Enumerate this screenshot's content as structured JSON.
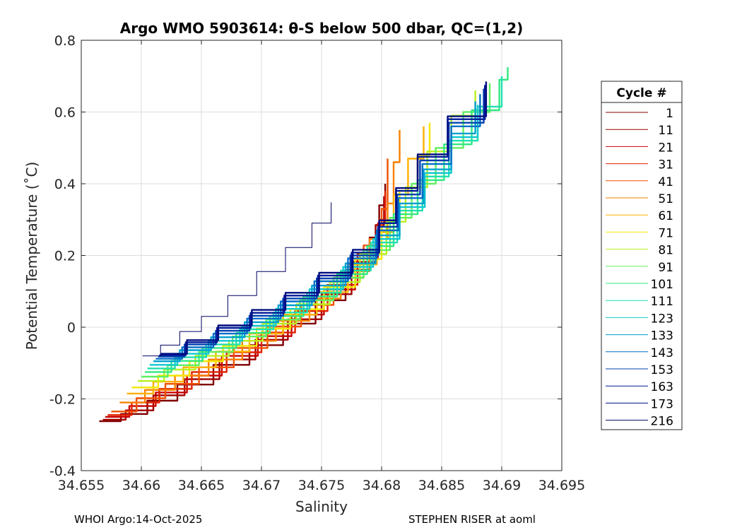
{
  "chart_data": {
    "type": "line",
    "title": "Argo WMO 5903614: θ-S below 500 dbar,  QC=(1,2)",
    "xlabel": "Salinity",
    "ylabel": "Potential Temperature (˚C)",
    "xlim": [
      34.655,
      34.695
    ],
    "ylim": [
      -0.4,
      0.8
    ],
    "xticks": [
      "34.655",
      "34.66",
      "34.665",
      "34.67",
      "34.675",
      "34.68",
      "34.685",
      "34.69",
      "34.695"
    ],
    "yticks": [
      "-0.4",
      "-0.2",
      "0",
      "0.2",
      "0.4",
      "0.6",
      "0.8"
    ],
    "grid": true,
    "legend": {
      "title": "Cycle #",
      "placement": "right",
      "entries": [
        {
          "label": "1",
          "color": "#800000"
        },
        {
          "label": "11",
          "color": "#a00000"
        },
        {
          "label": "21",
          "color": "#c80000"
        },
        {
          "label": "31",
          "color": "#e02000"
        },
        {
          "label": "41",
          "color": "#f05000"
        },
        {
          "label": "51",
          "color": "#f88000"
        },
        {
          "label": "61",
          "color": "#ffb000"
        },
        {
          "label": "71",
          "color": "#f4e800"
        },
        {
          "label": "81",
          "color": "#b8f020"
        },
        {
          "label": "91",
          "color": "#60f060"
        },
        {
          "label": "101",
          "color": "#30e880"
        },
        {
          "label": "111",
          "color": "#20e0b0"
        },
        {
          "label": "123",
          "color": "#10c8d0"
        },
        {
          "label": "133",
          "color": "#00a0d0"
        },
        {
          "label": "143",
          "color": "#0070c8"
        },
        {
          "label": "153",
          "color": "#0040b0"
        },
        {
          "label": "163",
          "color": "#001898"
        },
        {
          "label": "173",
          "color": "#000c80"
        },
        {
          "label": "216",
          "color": "#000060"
        }
      ]
    },
    "series": [
      {
        "label_ref": "1",
        "x": [
          34.6565,
          34.6583,
          34.6605,
          34.663,
          34.666,
          34.669,
          34.6718,
          34.6745,
          34.677,
          34.679,
          34.6798,
          34.6803
        ],
        "y": [
          -0.262,
          -0.242,
          -0.205,
          -0.16,
          -0.105,
          -0.05,
          0.01,
          0.075,
          0.16,
          0.25,
          0.34,
          0.4
        ]
      },
      {
        "label_ref": "11",
        "x": [
          34.6568,
          34.6587,
          34.661,
          34.6636,
          34.6665,
          34.6695,
          34.6722,
          34.675,
          34.6775,
          34.6795,
          34.6802
        ],
        "y": [
          -0.258,
          -0.232,
          -0.19,
          -0.145,
          -0.09,
          -0.035,
          0.022,
          0.092,
          0.182,
          0.285,
          0.365
        ]
      },
      {
        "label_ref": "21",
        "x": [
          34.657,
          34.659,
          34.6612,
          34.6638,
          34.6667,
          34.6697,
          34.6725,
          34.6752,
          34.6778,
          34.6797,
          34.6803
        ],
        "y": [
          -0.25,
          -0.22,
          -0.182,
          -0.135,
          -0.08,
          -0.025,
          0.035,
          0.105,
          0.19,
          0.29,
          0.37
        ]
      },
      {
        "label_ref": "31",
        "x": [
          34.6572,
          34.6592,
          34.6615,
          34.6642,
          34.6671,
          34.67,
          34.6728,
          34.6755,
          34.678,
          34.6798,
          34.6803
        ],
        "y": [
          -0.245,
          -0.21,
          -0.172,
          -0.125,
          -0.07,
          -0.015,
          0.045,
          0.118,
          0.205,
          0.3,
          0.38
        ]
      },
      {
        "label_ref": "41",
        "x": [
          34.6575,
          34.6596,
          34.662,
          34.6648,
          34.6677,
          34.6705,
          34.6733,
          34.676,
          34.6785,
          34.68,
          34.6805
        ],
        "y": [
          -0.235,
          -0.198,
          -0.158,
          -0.112,
          -0.058,
          0.002,
          0.062,
          0.138,
          0.228,
          0.33,
          0.47
        ]
      },
      {
        "label_ref": "51",
        "x": [
          34.6582,
          34.6603,
          34.6628,
          34.6656,
          34.6684,
          34.6712,
          34.674,
          34.6766,
          34.679,
          34.6805,
          34.681,
          34.6815
        ],
        "y": [
          -0.21,
          -0.175,
          -0.135,
          -0.09,
          -0.038,
          0.018,
          0.08,
          0.156,
          0.246,
          0.345,
          0.46,
          0.55
        ]
      },
      {
        "label_ref": "61",
        "x": [
          34.6588,
          34.661,
          34.6635,
          34.6662,
          34.669,
          34.6718,
          34.6746,
          34.6772,
          34.6796,
          34.681,
          34.6822,
          34.6835
        ],
        "y": [
          -0.185,
          -0.152,
          -0.112,
          -0.068,
          -0.018,
          0.035,
          0.098,
          0.175,
          0.265,
          0.37,
          0.47,
          0.56
        ]
      },
      {
        "label_ref": "71",
        "x": [
          34.6592,
          34.6614,
          34.664,
          34.6668,
          34.6696,
          34.6724,
          34.6752,
          34.6778,
          34.68,
          34.6815,
          34.683,
          34.684
        ],
        "y": [
          -0.168,
          -0.135,
          -0.095,
          -0.052,
          -0.004,
          0.05,
          0.112,
          0.19,
          0.28,
          0.38,
          0.48,
          0.57
        ]
      },
      {
        "label_ref": "81",
        "x": [
          34.6597,
          34.6619,
          34.6645,
          34.6673,
          34.6701,
          34.6729,
          34.6757,
          34.6782,
          34.6804,
          34.682,
          34.6838,
          34.6858,
          34.6878
        ],
        "y": [
          -0.15,
          -0.118,
          -0.08,
          -0.038,
          0.01,
          0.064,
          0.126,
          0.204,
          0.294,
          0.39,
          0.49,
          0.59,
          0.66
        ]
      },
      {
        "label_ref": "91",
        "x": [
          34.66,
          34.6622,
          34.6648,
          34.6676,
          34.6704,
          34.6732,
          34.676,
          34.6785,
          34.6807,
          34.6825,
          34.6845,
          34.6868,
          34.689
        ],
        "y": [
          -0.138,
          -0.106,
          -0.069,
          -0.026,
          0.021,
          0.075,
          0.138,
          0.215,
          0.305,
          0.4,
          0.5,
          0.6,
          0.68
        ]
      },
      {
        "label_ref": "101",
        "x": [
          34.6603,
          34.6625,
          34.6651,
          34.6679,
          34.6707,
          34.6735,
          34.6763,
          34.6788,
          34.681,
          34.683,
          34.6852,
          34.6875,
          34.6898,
          34.6905
        ],
        "y": [
          -0.125,
          -0.094,
          -0.058,
          -0.016,
          0.031,
          0.086,
          0.148,
          0.226,
          0.315,
          0.41,
          0.51,
          0.605,
          0.69,
          0.725
        ]
      },
      {
        "label_ref": "111",
        "x": [
          34.6605,
          34.6628,
          34.6654,
          34.6682,
          34.671,
          34.6738,
          34.6766,
          34.6791,
          34.6813,
          34.6834,
          34.6856,
          34.688,
          34.69
        ],
        "y": [
          -0.115,
          -0.084,
          -0.048,
          -0.006,
          0.041,
          0.096,
          0.158,
          0.236,
          0.325,
          0.42,
          0.52,
          0.615,
          0.7
        ]
      },
      {
        "label_ref": "123",
        "x": [
          34.6607,
          34.663,
          34.6656,
          34.6684,
          34.6712,
          34.674,
          34.6768,
          34.6793,
          34.6815,
          34.6836,
          34.6858,
          34.688
        ],
        "y": [
          -0.105,
          -0.074,
          -0.038,
          0.004,
          0.051,
          0.106,
          0.168,
          0.246,
          0.335,
          0.43,
          0.53,
          0.62
        ]
      },
      {
        "label_ref": "133",
        "x": [
          34.661,
          34.6632,
          34.6658,
          34.6686,
          34.6714,
          34.6742,
          34.677,
          34.6795,
          34.6815,
          34.6835,
          34.6858,
          34.6878
        ],
        "y": [
          -0.095,
          -0.064,
          -0.028,
          0.014,
          0.061,
          0.116,
          0.178,
          0.256,
          0.345,
          0.44,
          0.54,
          0.63
        ]
      },
      {
        "label_ref": "143",
        "x": [
          34.6612,
          34.6634,
          34.666,
          34.6688,
          34.6716,
          34.6744,
          34.6772,
          34.6796,
          34.6814,
          34.6834,
          34.6858,
          34.6882
        ],
        "y": [
          -0.088,
          -0.056,
          -0.018,
          0.024,
          0.072,
          0.128,
          0.192,
          0.27,
          0.36,
          0.455,
          0.56,
          0.65
        ]
      },
      {
        "label_ref": "153",
        "x": [
          34.6614,
          34.6636,
          34.6662,
          34.669,
          34.6718,
          34.6746,
          34.6774,
          34.6797,
          34.6813,
          34.6832,
          34.6856,
          34.6885
        ],
        "y": [
          -0.082,
          -0.048,
          -0.01,
          0.032,
          0.08,
          0.136,
          0.2,
          0.28,
          0.37,
          0.465,
          0.57,
          0.665
        ]
      },
      {
        "label_ref": "163",
        "x": [
          34.6615,
          34.6637,
          34.6663,
          34.6691,
          34.6719,
          34.6747,
          34.6775,
          34.6798,
          34.6812,
          34.683,
          34.6855,
          34.6886
        ],
        "y": [
          -0.078,
          -0.042,
          -0.002,
          0.04,
          0.088,
          0.144,
          0.208,
          0.29,
          0.38,
          0.475,
          0.58,
          0.675
        ]
      },
      {
        "label_ref": "173",
        "x": [
          34.6616,
          34.6638,
          34.6664,
          34.6692,
          34.672,
          34.6748,
          34.6776,
          34.6798,
          34.6812,
          34.683,
          34.6855,
          34.6887
        ],
        "y": [
          -0.074,
          -0.036,
          0.005,
          0.048,
          0.096,
          0.152,
          0.216,
          0.298,
          0.388,
          0.482,
          0.588,
          0.685
        ]
      },
      {
        "label_ref": "216",
        "x": [
          34.6601,
          34.6616,
          34.6632,
          34.665,
          34.6672,
          34.6696,
          34.672,
          34.6742,
          34.6758
        ],
        "y": [
          -0.08,
          -0.05,
          -0.012,
          0.03,
          0.088,
          0.155,
          0.222,
          0.29,
          0.348
        ]
      }
    ]
  },
  "footer": {
    "left": "WHOI Argo:14-Oct-2025",
    "right": "STEPHEN RISER at aoml"
  }
}
